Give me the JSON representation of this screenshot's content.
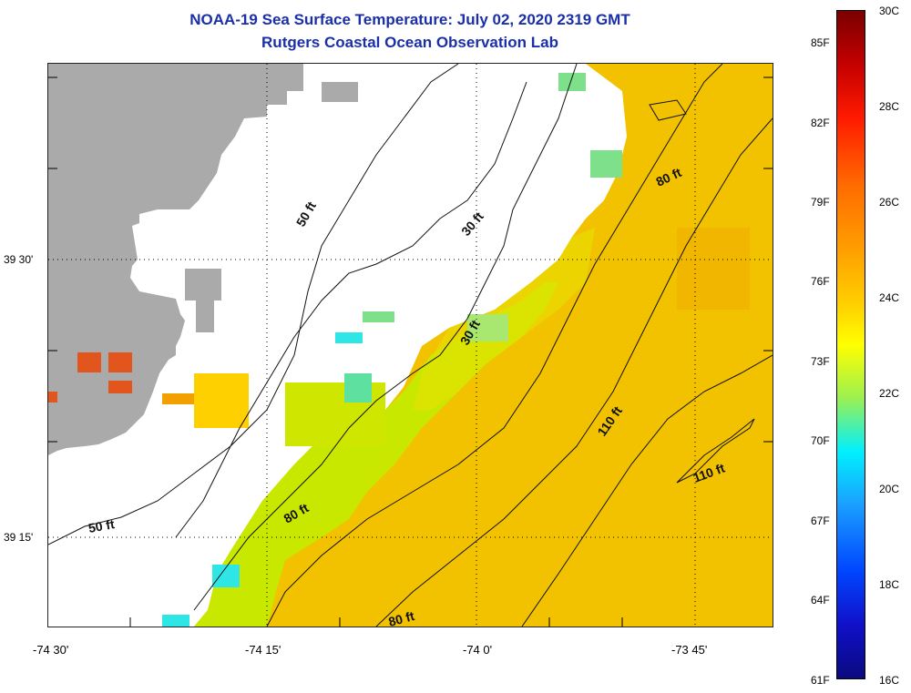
{
  "title": {
    "line1": "NOAA-19 Sea Surface Temperature:  July 02, 2020 2319 GMT",
    "line2": "Rutgers Coastal Ocean Observation Lab"
  },
  "map": {
    "lat_labels": [
      "39 30'",
      "39 15'"
    ],
    "lon_labels": [
      "-74 30'",
      "-74 15'",
      "-74 0'",
      "-73 45'"
    ],
    "contour_labels": [
      "50 ft",
      "30 ft",
      "80 ft",
      "30 ft",
      "110 ft",
      "110 ft",
      "80 ft",
      "50 ft",
      "80 ft"
    ],
    "colors": {
      "land": "#aaaaaa",
      "warm_water": "#f2c200",
      "cool_water": "#c8e800",
      "hot_spot": "#e2561d",
      "cyan_spot": "#2ee6e6",
      "green_spot": "#7ee08a"
    }
  },
  "colorbar": {
    "fahrenheit_labels": [
      "85F",
      "82F",
      "79F",
      "76F",
      "73F",
      "70F",
      "67F",
      "64F",
      "61F"
    ],
    "celsius_labels": [
      "30C",
      "28C",
      "26C",
      "24C",
      "22C",
      "20C",
      "18C",
      "16C"
    ],
    "range_c": [
      16,
      30
    ],
    "range_f": [
      61,
      86
    ]
  }
}
